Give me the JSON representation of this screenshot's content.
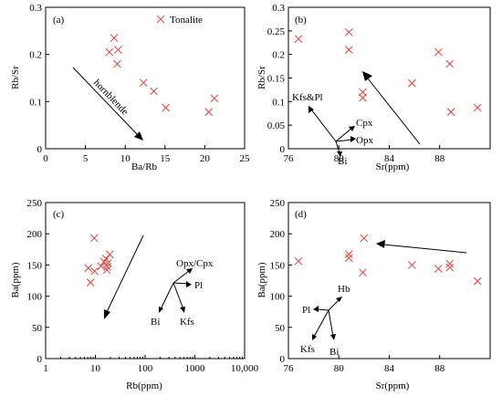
{
  "marker_color": "#e0504a",
  "chart_data": [
    {
      "type": "scatter",
      "panel_label": "(a)",
      "legend": "Tonalite",
      "xlabel": "Ba/Rb",
      "ylabel": "Rb/Sr",
      "xlim": [
        0,
        25
      ],
      "ylim": [
        0,
        0.3
      ],
      "xticks": [
        "0",
        "5",
        "10",
        "15",
        "20",
        "25"
      ],
      "yticks": [
        "0",
        "0.1",
        "0.2",
        "0.3"
      ],
      "points": [
        [
          8.6,
          0.235
        ],
        [
          8.0,
          0.205
        ],
        [
          9.1,
          0.21
        ],
        [
          9.0,
          0.18
        ],
        [
          12.3,
          0.14
        ],
        [
          13.6,
          0.122
        ],
        [
          15.1,
          0.087
        ],
        [
          20.5,
          0.078
        ],
        [
          21.2,
          0.107
        ]
      ],
      "annotations": [
        "hornblende"
      ]
    },
    {
      "type": "scatter",
      "panel_label": "(b)",
      "xlabel": "Sr(ppm)",
      "ylabel": "Rb/Sr",
      "xlim": [
        76,
        92
      ],
      "ylim": [
        0,
        0.3
      ],
      "xticks": [
        "76",
        "80",
        "84",
        "88"
      ],
      "yticks": [
        "0",
        "0.05",
        "0.1",
        "0.15",
        "0.2",
        "0.25",
        "0.3"
      ],
      "points": [
        [
          76.8,
          0.233
        ],
        [
          80.8,
          0.247
        ],
        [
          80.8,
          0.21
        ],
        [
          81.9,
          0.12
        ],
        [
          81.9,
          0.108
        ],
        [
          85.8,
          0.139
        ],
        [
          87.9,
          0.205
        ],
        [
          88.8,
          0.18
        ],
        [
          88.9,
          0.078
        ],
        [
          91.0,
          0.087
        ]
      ],
      "annotations": [
        "Kfs&Pl",
        "Cpx",
        "Opx",
        "Bi"
      ]
    },
    {
      "type": "scatter",
      "panel_label": "(c)",
      "xlabel": "Rb(ppm)",
      "ylabel": "Ba(ppm)",
      "xscale": "log",
      "xlim": [
        1,
        10000
      ],
      "ylim": [
        0,
        250
      ],
      "xticks": [
        "1",
        "10",
        "100",
        "1000",
        "10,000"
      ],
      "yticks": [
        "0",
        "50",
        "100",
        "150",
        "200",
        "250"
      ],
      "points": [
        [
          9.5,
          193
        ],
        [
          7.2,
          145
        ],
        [
          8.0,
          122
        ],
        [
          9.6,
          140
        ],
        [
          13.0,
          148
        ],
        [
          15.0,
          155
        ],
        [
          16.5,
          160
        ],
        [
          18.0,
          153
        ],
        [
          17.5,
          147
        ],
        [
          19.5,
          167
        ],
        [
          17.0,
          142
        ]
      ],
      "annotations": [
        "Opx/Cpx",
        "Pl",
        "Bi",
        "Kfs"
      ]
    },
    {
      "type": "scatter",
      "panel_label": "(d)",
      "xlabel": "Sr(ppm)",
      "ylabel": "Ba(ppm)",
      "xlim": [
        76,
        92
      ],
      "ylim": [
        0,
        250
      ],
      "xticks": [
        "76",
        "80",
        "84",
        "88"
      ],
      "yticks": [
        "0",
        "50",
        "100",
        "150",
        "200",
        "250"
      ],
      "points": [
        [
          76.8,
          156
        ],
        [
          80.8,
          167
        ],
        [
          80.8,
          161
        ],
        [
          82.0,
          193
        ],
        [
          81.9,
          138
        ],
        [
          85.8,
          150
        ],
        [
          87.9,
          144
        ],
        [
          88.8,
          152
        ],
        [
          88.8,
          146
        ],
        [
          91.0,
          124
        ]
      ],
      "annotations": [
        "Hb",
        "Pl",
        "Kfs",
        "Bi"
      ]
    }
  ]
}
